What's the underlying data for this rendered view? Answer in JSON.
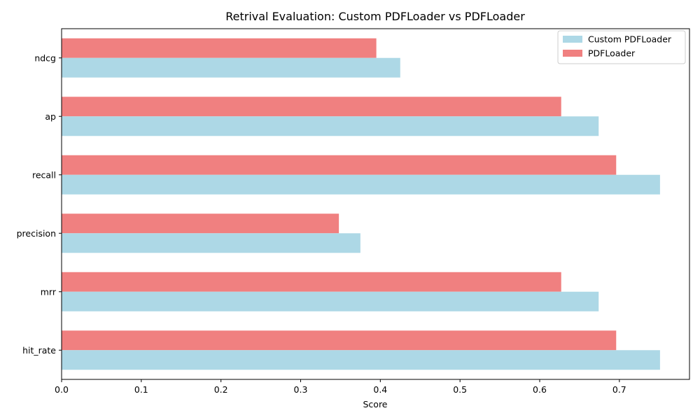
{
  "chart_data": {
    "type": "bar",
    "orientation": "horizontal",
    "title": "Retrival Evaluation: Custom PDFLoader vs PDFLoader",
    "xlabel": "Score",
    "ylabel": "",
    "xlim": [
      0,
      0.788
    ],
    "xticks": [
      "0.0",
      "0.1",
      "0.2",
      "0.3",
      "0.4",
      "0.5",
      "0.6",
      "0.7"
    ],
    "categories": [
      "ndcg",
      "ap",
      "recall",
      "precision",
      "mrr",
      "hit_rate"
    ],
    "series": [
      {
        "name": "Custom PDFLoader",
        "color": "#add8e6",
        "values": [
          0.425,
          0.674,
          0.751,
          0.375,
          0.674,
          0.751
        ]
      },
      {
        "name": "PDFLoader",
        "color": "#f08080",
        "values": [
          0.395,
          0.627,
          0.696,
          0.348,
          0.627,
          0.696
        ]
      }
    ],
    "legend": {
      "position": "top-right"
    },
    "grid": false
  }
}
